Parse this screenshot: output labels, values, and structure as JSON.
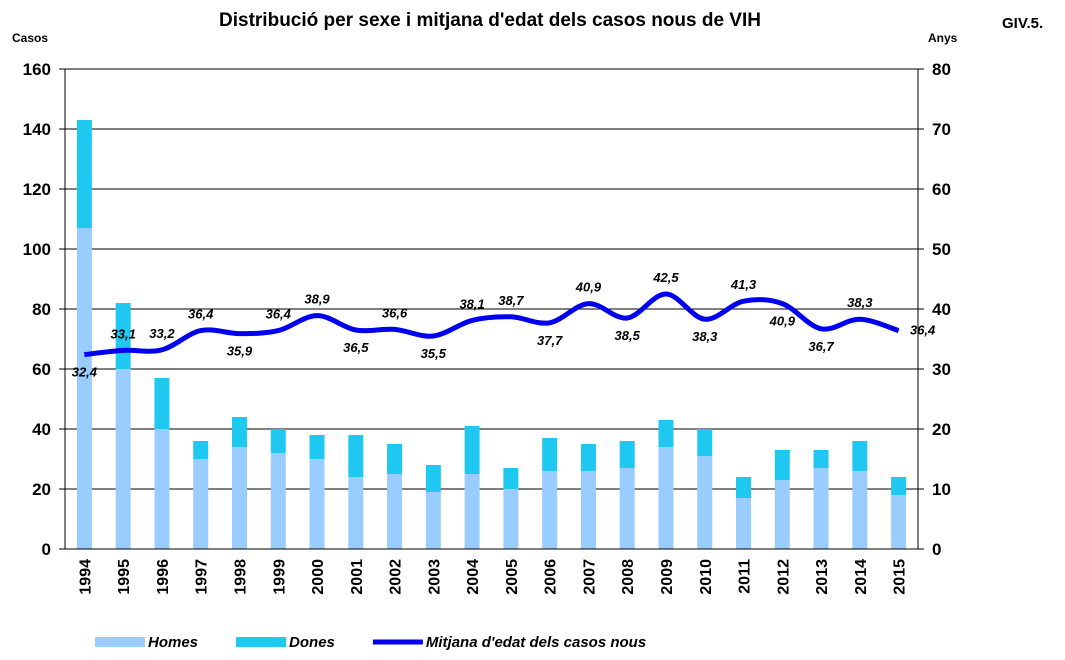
{
  "chart_data": {
    "type": "bar_line",
    "title": "Distribució per sexe i mitjana d'edat dels casos nous de VIH",
    "y_label": "Casos",
    "y2_label": "Anys",
    "corner_label": "GIV.5.",
    "categories": [
      "1994",
      "1995",
      "1996",
      "1997",
      "1998",
      "1999",
      "2000",
      "2001",
      "2002",
      "2003",
      "2004",
      "2005",
      "2006",
      "2007",
      "2008",
      "2009",
      "2010",
      "2011",
      "2012",
      "2013",
      "2014",
      "2015"
    ],
    "series": [
      {
        "name": "Homes",
        "color": "#99ccff",
        "values": [
          107,
          60,
          40,
          30,
          34,
          32,
          30,
          24,
          25,
          19,
          25,
          20,
          26,
          26,
          27,
          34,
          31,
          17,
          23,
          27,
          26,
          18
        ]
      },
      {
        "name": "Dones",
        "color": "#1ec8f0",
        "values": [
          36,
          22,
          17,
          6,
          10,
          8,
          8,
          14,
          10,
          9,
          16,
          7,
          11,
          9,
          9,
          9,
          9,
          7,
          10,
          6,
          10,
          6
        ]
      },
      {
        "name": "Mitjana d'edat dels casos nous",
        "color": "#0000ee",
        "axis": "y2",
        "values": [
          32.4,
          33.1,
          33.2,
          36.4,
          35.9,
          36.4,
          38.9,
          36.5,
          36.6,
          35.5,
          38.1,
          38.7,
          37.7,
          40.9,
          38.5,
          42.5,
          38.3,
          41.3,
          40.9,
          36.7,
          38.3,
          36.4
        ],
        "value_labels": [
          "32,4",
          "33,1",
          "33,2",
          "36,4",
          "35,9",
          "36,4",
          "38,9",
          "36,5",
          "36,6",
          "35,5",
          "38,1",
          "38,7",
          "37,7",
          "40,9",
          "38,5",
          "42,5",
          "38,3",
          "41,3",
          "40,9",
          "36,7",
          "38,3",
          "36,4"
        ]
      }
    ],
    "ylim": [
      0,
      160
    ],
    "yticks": [
      0,
      20,
      40,
      60,
      80,
      100,
      120,
      140,
      160
    ],
    "y2lim": [
      0,
      80
    ],
    "y2ticks": [
      0,
      10,
      20,
      30,
      40,
      50,
      60,
      70,
      80
    ],
    "grid": true,
    "legend": "bottom"
  }
}
